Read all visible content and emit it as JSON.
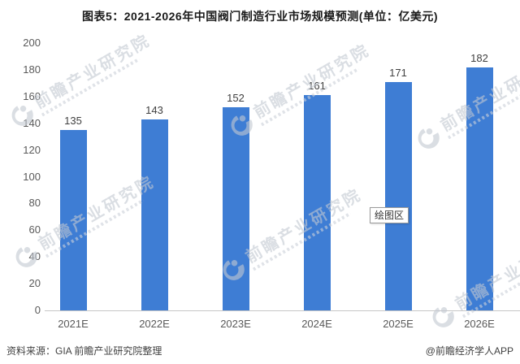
{
  "title": "图表5：2021-2026年中国阀门制造行业市场规模预测(单位：亿美元)",
  "chart_data": {
    "type": "bar",
    "title": "图表5：2021-2026年中国阀门制造行业市场规模预测(单位：亿美元)",
    "categories": [
      "2021E",
      "2022E",
      "2023E",
      "2024E",
      "2025E",
      "2026E"
    ],
    "values": [
      135,
      143,
      152,
      161,
      171,
      182
    ],
    "xlabel": "",
    "ylabel": "",
    "unit": "亿美元",
    "ylim": [
      0,
      200
    ],
    "ytick_step": 20,
    "grid": false,
    "legend": false,
    "value_labels": true,
    "bar_color": "#3e7dd4"
  },
  "tooltip": {
    "label": "绘图区"
  },
  "watermark": {
    "text": "前瞻产业研究院"
  },
  "footer": {
    "source": "资料来源：GIA 前瞻产业研究院整理",
    "credit": "@前瞻经济学人APP"
  },
  "colors": {
    "bar": "#3e7dd4",
    "title_text": "#1a1a1a",
    "axis_text": "#595959",
    "value_text": "#404040",
    "axis_line": "#c6c6c6",
    "watermark": "#c3c9d2"
  }
}
